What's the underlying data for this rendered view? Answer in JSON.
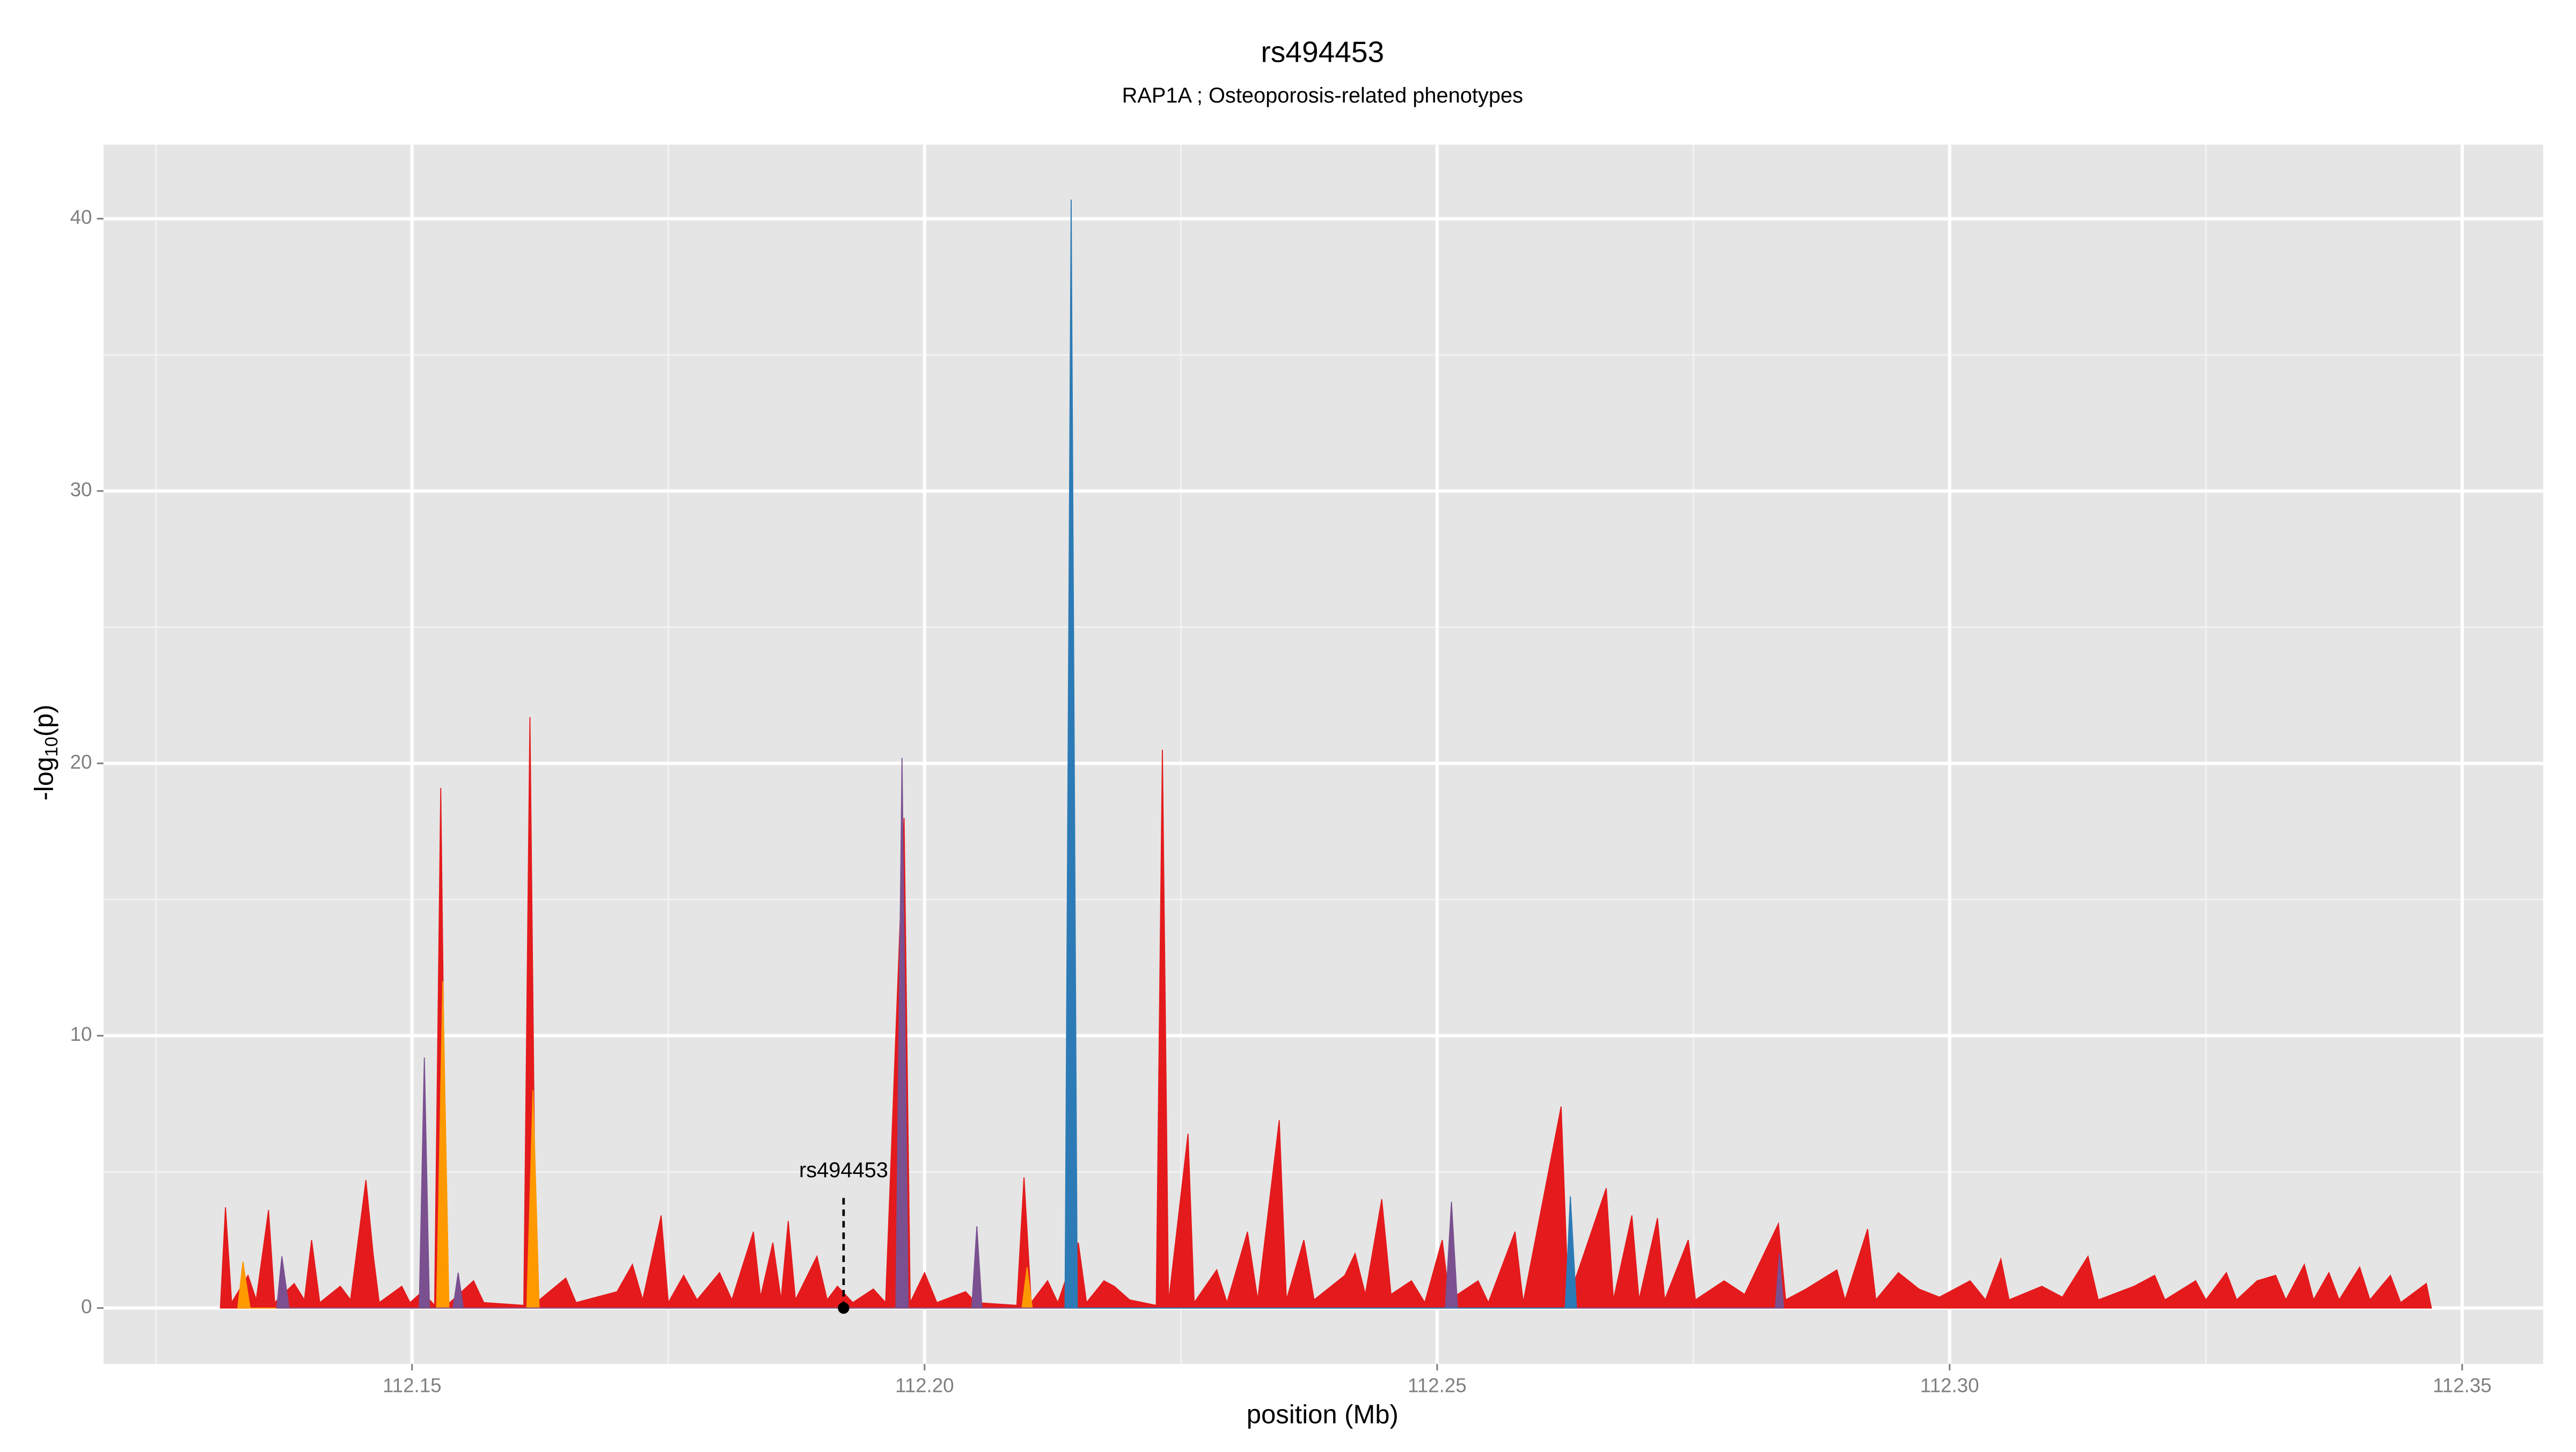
{
  "chart_data": {
    "type": "area",
    "title": "rs494453",
    "subtitle": "RAP1A ; Osteoporosis-related phenotypes",
    "x_label": "position (Mb)",
    "y_label": {
      "main": "-log",
      "sub": "10",
      "end": "(p)"
    },
    "xlim": [
      112.1199,
      112.3579
    ],
    "ylim": [
      -2.05,
      42.72
    ],
    "xticks": [
      112.15,
      {
        "value": 112.2,
        "label": "112.20"
      },
      112.25,
      {
        "value": 112.3,
        "label": "112.30"
      },
      112.35
    ],
    "yticks": [
      0,
      10,
      20,
      30,
      40
    ],
    "xminor": [
      112.125,
      112.175,
      112.225,
      112.275,
      112.325
    ],
    "yminor": [
      5,
      15,
      25,
      35
    ],
    "grid": true,
    "series": [
      {
        "color": "#e41a1c",
        "x": [
          112.1313,
          112.1318,
          112.1324,
          112.134,
          112.1348,
          112.136,
          112.1366,
          112.1385,
          112.1395,
          112.1402,
          112.141,
          112.143,
          112.144,
          112.1455,
          112.1462,
          112.1468,
          112.149,
          112.1498,
          112.151,
          112.1522,
          112.1528,
          112.1534,
          112.156,
          112.157,
          112.1609,
          112.1615,
          112.1621,
          112.165,
          112.166,
          112.17,
          112.1715,
          112.1725,
          112.1743,
          112.175,
          112.1765,
          112.1778,
          112.18,
          112.1812,
          112.1833,
          112.184,
          112.1852,
          112.186,
          112.1867,
          112.1874,
          112.1895,
          112.1905,
          112.1915,
          112.193,
          112.195,
          112.1962,
          112.198,
          112.1986,
          112.2,
          112.2012,
          112.204,
          112.205,
          112.209,
          112.2097,
          112.2104,
          112.212,
          112.213,
          112.215,
          112.2158,
          112.2175,
          112.2185,
          112.22,
          112.2226,
          112.2232,
          112.2238,
          112.2257,
          112.2263,
          112.2285,
          112.2295,
          112.2315,
          112.2325,
          112.2346,
          112.2353,
          112.237,
          112.238,
          112.241,
          112.242,
          112.243,
          112.2446,
          112.2455,
          112.2475,
          112.2488,
          112.2505,
          112.2512,
          112.254,
          112.255,
          112.2576,
          112.2584,
          112.2621,
          112.2628,
          112.2665,
          112.2672,
          112.269,
          112.2697,
          112.2715,
          112.2722,
          112.2745,
          112.2752,
          112.278,
          112.28,
          112.2833,
          112.284,
          112.286,
          112.289,
          112.2898,
          112.292,
          112.2928,
          112.295,
          112.297,
          112.299,
          112.302,
          112.3035,
          112.305,
          112.3058,
          112.309,
          112.311,
          112.3135,
          112.3145,
          112.318,
          112.32,
          112.321,
          112.324,
          112.325,
          112.327,
          112.328,
          112.33,
          112.3318,
          112.3328,
          112.3346,
          112.3355,
          112.337,
          112.338,
          112.34,
          112.341,
          112.343,
          112.344,
          112.3465,
          112.347
        ],
        "values": [
          0,
          3.7,
          0.2,
          1.2,
          0.3,
          3.6,
          0.2,
          0.9,
          0.3,
          2.5,
          0.2,
          0.8,
          0.3,
          4.7,
          2.0,
          0.2,
          0.8,
          0.2,
          0.6,
          0.1,
          19.1,
          0.1,
          1.0,
          0.2,
          0.1,
          21.7,
          0.2,
          1.1,
          0.2,
          0.6,
          1.6,
          0.3,
          3.4,
          0.2,
          1.2,
          0.3,
          1.3,
          0.3,
          2.8,
          0.4,
          2.4,
          0.3,
          3.2,
          0.3,
          1.9,
          0.3,
          0.8,
          0.2,
          0.7,
          0.2,
          18.0,
          0.2,
          1.3,
          0.2,
          0.6,
          0.2,
          0.1,
          4.8,
          0.2,
          1.0,
          0.2,
          2.4,
          0.2,
          1.0,
          0.8,
          0.3,
          0.1,
          20.5,
          0.2,
          6.4,
          0.2,
          1.4,
          0.2,
          2.8,
          0.3,
          6.9,
          0.3,
          2.5,
          0.3,
          1.2,
          2.0,
          0.5,
          4.0,
          0.5,
          1.0,
          0.2,
          2.5,
          0.3,
          1.0,
          0.2,
          2.8,
          0.2,
          7.4,
          0.3,
          4.4,
          0.3,
          3.4,
          0.3,
          3.3,
          0.3,
          2.5,
          0.3,
          1.0,
          0.5,
          3.1,
          0.3,
          0.7,
          1.4,
          0.3,
          2.9,
          0.3,
          1.3,
          0.7,
          0.4,
          1.0,
          0.3,
          1.8,
          0.3,
          0.8,
          0.4,
          1.9,
          0.3,
          0.8,
          1.2,
          0.3,
          1.0,
          0.3,
          1.3,
          0.3,
          1.0,
          1.2,
          0.3,
          1.6,
          0.3,
          1.3,
          0.3,
          1.5,
          0.3,
          1.2,
          0.2,
          0.9,
          0
        ]
      },
      {
        "color": "#ff9900",
        "x": [
          112.133,
          112.1335,
          112.1342,
          112.1524,
          112.153,
          112.1536,
          112.1612,
          112.1618,
          112.1624,
          112.2095,
          112.21,
          112.2105
        ],
        "values": [
          0,
          1.7,
          0,
          0,
          12.0,
          0,
          0,
          8.0,
          0,
          0,
          1.5,
          0
        ]
      },
      {
        "color": "#7a5090",
        "x": [
          112.1368,
          112.1373,
          112.138,
          112.1507,
          112.1512,
          112.1517,
          112.154,
          112.1545,
          112.155,
          112.1972,
          112.1978,
          112.1984,
          112.2046,
          112.2051,
          112.2056,
          112.2508,
          112.2514,
          112.252,
          112.283,
          112.2834,
          112.2838
        ],
        "values": [
          0,
          1.9,
          0,
          0,
          9.2,
          0,
          0,
          1.3,
          0,
          0,
          20.2,
          0,
          0,
          3.0,
          0,
          0,
          3.9,
          0,
          0,
          2.0,
          0
        ]
      },
      {
        "color": "#2c7bb6",
        "x": [
          112.2137,
          112.2143,
          112.2149,
          112.2625,
          112.263,
          112.2636
        ],
        "values": [
          0,
          40.7,
          0,
          0,
          4.1,
          0
        ]
      }
    ],
    "annotation": {
      "text": "rs494453",
      "x": 112.1921,
      "y": 0
    }
  }
}
